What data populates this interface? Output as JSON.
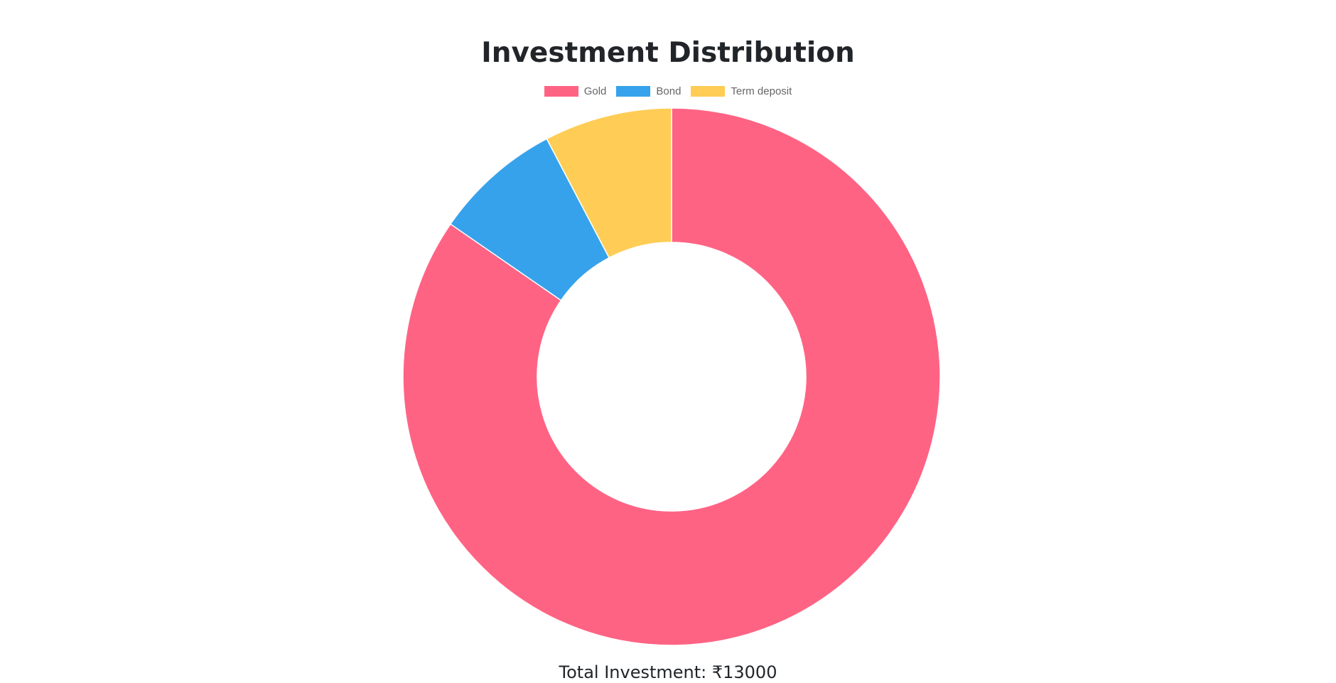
{
  "page": {
    "title": "Investment Distribution",
    "total_label": "Total Investment: ₹13000"
  },
  "chart_data": {
    "type": "pie",
    "variant": "doughnut",
    "title": "Investment Distribution",
    "categories": [
      "Gold",
      "Bond",
      "Term deposit"
    ],
    "values": [
      11000,
      1000,
      1000
    ],
    "colors": [
      "#ff6384",
      "#36a2eb",
      "#ffcd56"
    ],
    "legend_position": "top-center"
  }
}
